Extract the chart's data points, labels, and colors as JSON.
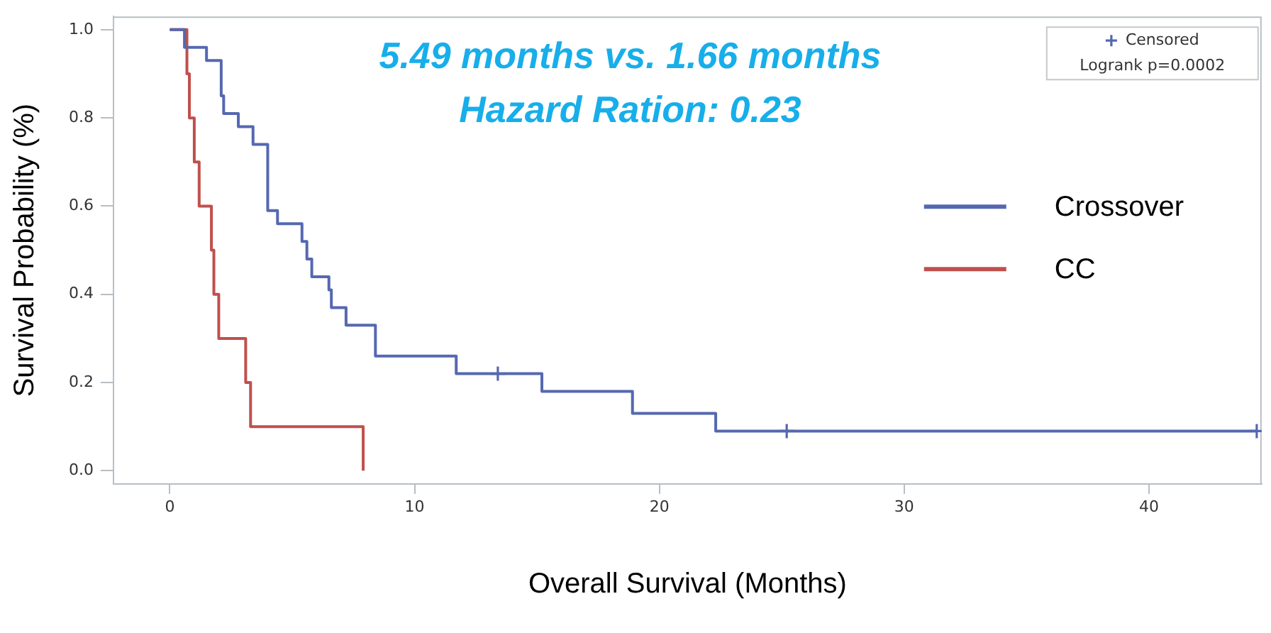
{
  "chart_data": {
    "type": "step",
    "title": "5.49 months vs. 1.66 months",
    "subtitle": "Hazard Ration: 0.23",
    "xlabel": "Overall Survival (Months)",
    "ylabel": "Survival Probability (%)",
    "annotations": [
      "Logrank p=0.0002"
    ],
    "xlim": [
      -2.3,
      44.6
    ],
    "xticks": [
      0,
      10,
      20,
      30,
      40
    ],
    "ylim": [
      -0.03,
      1.03
    ],
    "yticks": [
      {
        "value": 0,
        "label": "0.0"
      },
      0.2,
      0.4,
      0.6,
      0.8,
      {
        "value": 1,
        "label": "1.0"
      }
    ],
    "grid": false,
    "legend": "right",
    "series": [
      {
        "name": "Crossover",
        "color": "#5568b0",
        "x": [
          0,
          0.6,
          1.5,
          2.1,
          2.2,
          2.8,
          3.4,
          4,
          4.4,
          5.4,
          5.6,
          5.8,
          6.5,
          6.6,
          7.2,
          8.4,
          11.7,
          15.2,
          18.9,
          22.3,
          44.4
        ],
        "values": [
          1,
          0.96,
          0.93,
          0.85,
          0.81,
          0.78,
          0.74,
          0.59,
          0.56,
          0.52,
          0.48,
          0.44,
          0.41,
          0.37,
          0.33,
          0.26,
          0.22,
          0.18,
          0.13,
          0.09,
          0.09
        ]
      },
      {
        "name": "CC",
        "color": "#c0504d",
        "x": [
          0,
          0.7,
          0.8,
          1,
          1.2,
          1.7,
          1.8,
          2,
          3.1,
          3.3,
          7.9
        ],
        "values": [
          1,
          0.9,
          0.8,
          0.7,
          0.6,
          0.5,
          0.4,
          0.3,
          0.2,
          0.1,
          0
        ]
      },
      {
        "type": "scatter",
        "name": "Censored",
        "color": "#5568b0",
        "marker": "cross",
        "x": [
          13.4,
          25.2,
          44.4
        ],
        "values": [
          0.22,
          0.09,
          0.09
        ]
      }
    ]
  }
}
